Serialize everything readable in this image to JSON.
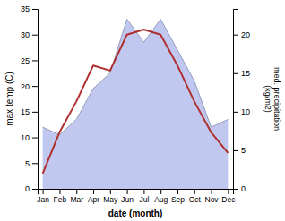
{
  "chart_data": {
    "type": "line",
    "categories": [
      "Jan",
      "Feb",
      "Mar",
      "Apr",
      "May",
      "Jun",
      "Jul",
      "Aug",
      "Sep",
      "Oct",
      "Nov",
      "Dec"
    ],
    "series": [
      {
        "type": "line",
        "color": "#b03030",
        "values": [
          3,
          11,
          17,
          24,
          23,
          30,
          31,
          30,
          24,
          17,
          11,
          7
        ]
      },
      {
        "type": "area",
        "color": "#c0c8f0",
        "axis": "y2",
        "values": [
          8,
          7,
          9,
          13,
          15,
          22,
          19,
          22,
          18,
          14,
          8,
          9
        ]
      }
    ],
    "xlabel": "date (month)",
    "ylabel": "max temp (C)",
    "y2label": "med. precipitation\n(kg/m2)",
    "ylim": [
      0,
      35
    ],
    "yticks": [
      0,
      5,
      10,
      15,
      20,
      25,
      30,
      35
    ],
    "y2lim": [
      0,
      23.33
    ],
    "y2ticks": [
      0,
      5,
      10,
      15,
      20
    ]
  }
}
